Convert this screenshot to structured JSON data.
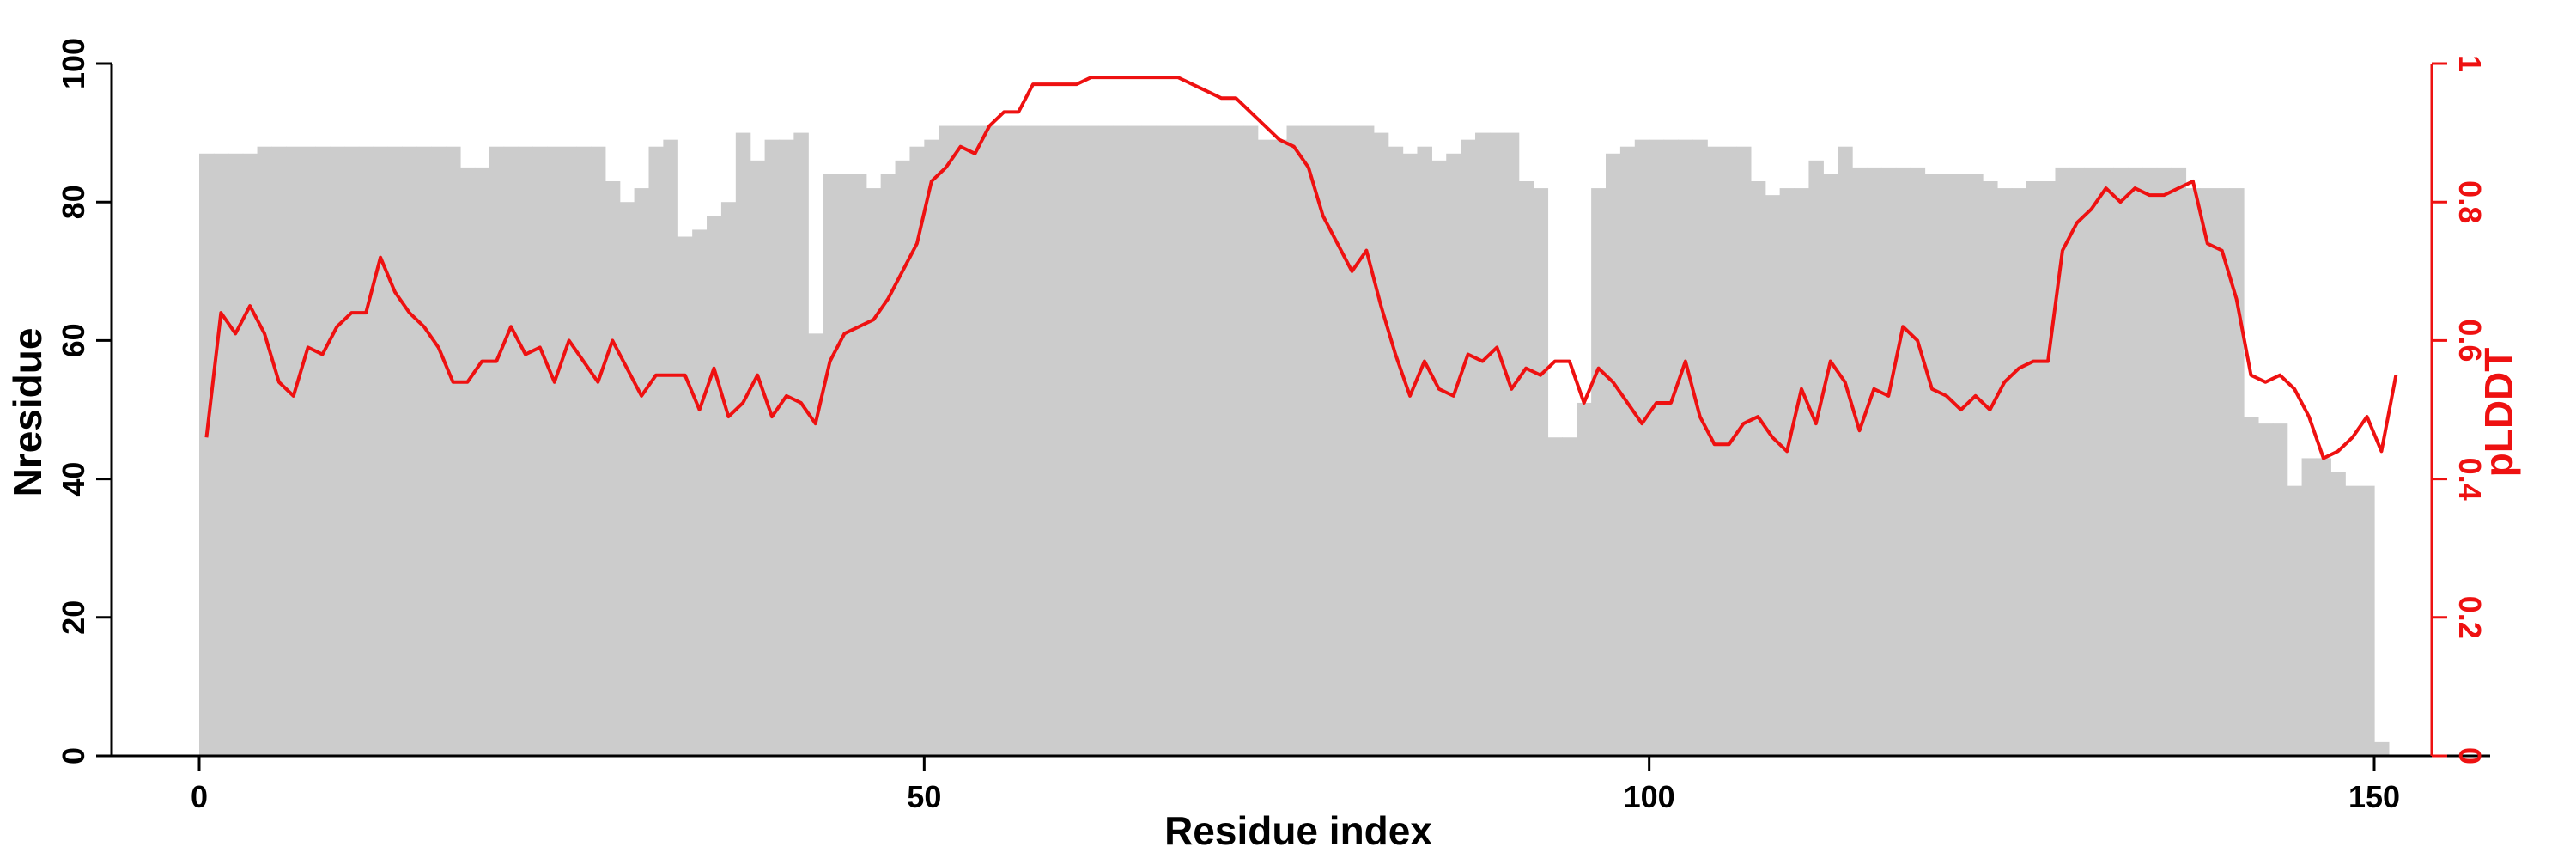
{
  "chart_data": {
    "type": "bar+line",
    "xlabel": "Residue index",
    "ylabel": "Nresidue",
    "y2label": "pLDDT",
    "xlim": [
      -6,
      158
    ],
    "ylim": [
      0,
      100
    ],
    "y2lim": [
      0,
      1
    ],
    "x_ticks": [
      0,
      50,
      100,
      150
    ],
    "y_ticks": [
      0,
      20,
      40,
      60,
      80,
      100
    ],
    "y2_ticks": [
      0,
      0.2,
      0.4,
      0.6,
      0.8,
      1
    ],
    "colors": {
      "bars": "#cccccc",
      "line": "#ee1111",
      "axis": "#000000",
      "y2axis": "#ee1111"
    },
    "series": [
      {
        "kind": "bar",
        "values": [
          87,
          87,
          87,
          87,
          88,
          88,
          88,
          88,
          88,
          88,
          88,
          88,
          88,
          88,
          88,
          88,
          88,
          88,
          85,
          85,
          88,
          88,
          88,
          88,
          88,
          88,
          88,
          88,
          83,
          80,
          82,
          88,
          89,
          75,
          76,
          78,
          80,
          90,
          86,
          89,
          89,
          90,
          61,
          84,
          84,
          84,
          82,
          84,
          86,
          88,
          89,
          91,
          91,
          91,
          91,
          91,
          91,
          91,
          91,
          91,
          91,
          91,
          91,
          91,
          91,
          91,
          91,
          91,
          91,
          91,
          91,
          91,
          91,
          89,
          89,
          91,
          91,
          91,
          91,
          91,
          91,
          90,
          88,
          87,
          88,
          86,
          87,
          89,
          90,
          90,
          90,
          83,
          82,
          46,
          46,
          51,
          82,
          87,
          88,
          89,
          89,
          89,
          89,
          89,
          88,
          88,
          88,
          83,
          81,
          82,
          82,
          86,
          84,
          88,
          85,
          85,
          85,
          85,
          85,
          84,
          84,
          84,
          84,
          83,
          82,
          82,
          83,
          83,
          85,
          85,
          85,
          85,
          85,
          85,
          85,
          85,
          85,
          82,
          82,
          82,
          82,
          49,
          48,
          48,
          39,
          43,
          43,
          41,
          39,
          39,
          2
        ]
      },
      {
        "kind": "line",
        "axis": "y2",
        "values": [
          0.46,
          0.64,
          0.61,
          0.65,
          0.61,
          0.54,
          0.52,
          0.59,
          0.58,
          0.62,
          0.64,
          0.64,
          0.72,
          0.67,
          0.64,
          0.62,
          0.59,
          0.54,
          0.54,
          0.57,
          0.57,
          0.62,
          0.58,
          0.59,
          0.54,
          0.6,
          0.57,
          0.54,
          0.6,
          0.56,
          0.52,
          0.55,
          0.55,
          0.55,
          0.5,
          0.56,
          0.49,
          0.51,
          0.55,
          0.49,
          0.52,
          0.51,
          0.48,
          0.57,
          0.61,
          0.62,
          0.63,
          0.66,
          0.7,
          0.74,
          0.83,
          0.85,
          0.88,
          0.87,
          0.91,
          0.93,
          0.93,
          0.97,
          0.97,
          0.97,
          0.97,
          0.98,
          0.98,
          0.98,
          0.98,
          0.98,
          0.98,
          0.98,
          0.97,
          0.96,
          0.95,
          0.95,
          0.93,
          0.91,
          0.89,
          0.88,
          0.85,
          0.78,
          0.74,
          0.7,
          0.73,
          0.65,
          0.58,
          0.52,
          0.57,
          0.53,
          0.52,
          0.58,
          0.57,
          0.59,
          0.53,
          0.56,
          0.55,
          0.57,
          0.57,
          0.51,
          0.56,
          0.54,
          0.51,
          0.48,
          0.51,
          0.51,
          0.57,
          0.49,
          0.45,
          0.45,
          0.48,
          0.49,
          0.46,
          0.44,
          0.53,
          0.48,
          0.57,
          0.54,
          0.47,
          0.53,
          0.52,
          0.62,
          0.6,
          0.53,
          0.52,
          0.5,
          0.52,
          0.5,
          0.54,
          0.56,
          0.57,
          0.57,
          0.73,
          0.77,
          0.79,
          0.82,
          0.8,
          0.82,
          0.81,
          0.81,
          0.82,
          0.83,
          0.74,
          0.73,
          0.66,
          0.55,
          0.54,
          0.55,
          0.53,
          0.49,
          0.43,
          0.44,
          0.46,
          0.49,
          0.44,
          0.55
        ]
      }
    ]
  }
}
